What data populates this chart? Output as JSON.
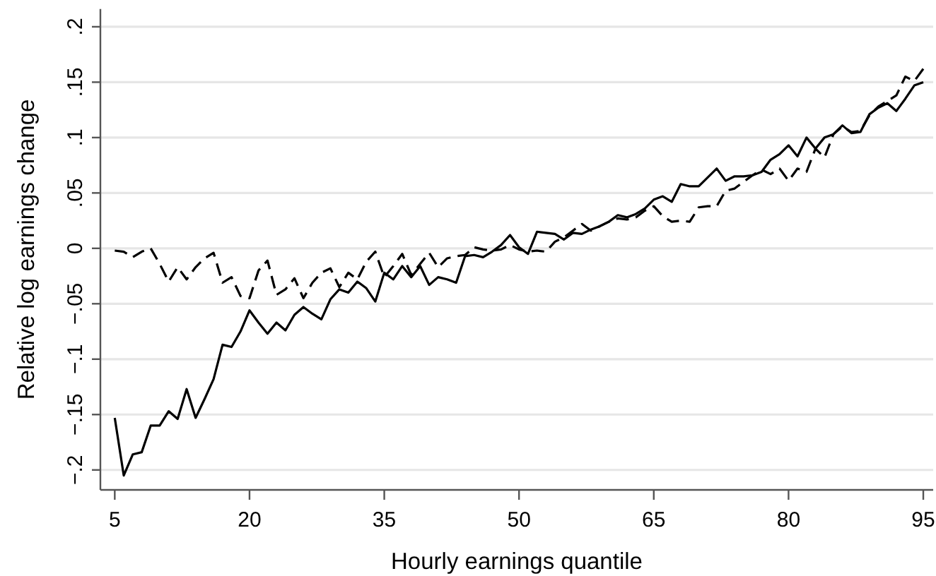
{
  "chart_data": {
    "type": "line",
    "xlabel": "Hourly earnings quantile",
    "ylabel": "Relative log earnings change",
    "x": [
      5,
      6,
      7,
      8,
      9,
      10,
      11,
      12,
      13,
      14,
      15,
      16,
      17,
      18,
      19,
      20,
      21,
      22,
      23,
      24,
      25,
      26,
      27,
      28,
      29,
      30,
      31,
      32,
      33,
      34,
      35,
      36,
      37,
      38,
      39,
      40,
      41,
      42,
      43,
      44,
      45,
      46,
      47,
      48,
      49,
      50,
      51,
      52,
      53,
      54,
      55,
      56,
      57,
      58,
      59,
      60,
      61,
      62,
      63,
      64,
      65,
      66,
      67,
      68,
      69,
      70,
      71,
      72,
      73,
      74,
      75,
      76,
      77,
      78,
      79,
      80,
      81,
      82,
      83,
      84,
      85,
      86,
      87,
      88,
      89,
      90,
      91,
      92,
      93,
      94,
      95
    ],
    "series": [
      {
        "color": "#000000",
        "line_style": "solid",
        "values": [
          -0.153,
          -0.205,
          -0.186,
          -0.184,
          -0.16,
          -0.16,
          -0.147,
          -0.154,
          -0.127,
          -0.153,
          -0.136,
          -0.118,
          -0.087,
          -0.089,
          -0.075,
          -0.056,
          -0.067,
          -0.077,
          -0.067,
          -0.074,
          -0.06,
          -0.053,
          -0.059,
          -0.064,
          -0.046,
          -0.037,
          -0.04,
          -0.03,
          -0.036,
          -0.048,
          -0.022,
          -0.028,
          -0.016,
          -0.026,
          -0.016,
          -0.033,
          -0.026,
          -0.028,
          -0.031,
          -0.007,
          -0.006,
          -0.008,
          -0.003,
          0.003,
          0.012,
          0.001,
          -0.005,
          0.015,
          0.014,
          0.013,
          0.008,
          0.014,
          0.013,
          0.017,
          0.02,
          0.024,
          0.03,
          0.028,
          0.031,
          0.036,
          0.044,
          0.047,
          0.042,
          0.058,
          0.056,
          0.056,
          0.064,
          0.072,
          0.061,
          0.065,
          0.065,
          0.066,
          0.069,
          0.08,
          0.085,
          0.093,
          0.083,
          0.1,
          0.09,
          0.1,
          0.103,
          0.111,
          0.104,
          0.105,
          0.121,
          0.127,
          0.131,
          0.124,
          0.135,
          0.147,
          0.15
        ]
      },
      {
        "color": "#000000",
        "line_style": "dashed",
        "values": [
          -0.002,
          -0.003,
          -0.008,
          -0.003,
          0.0,
          -0.014,
          -0.03,
          -0.017,
          -0.028,
          -0.017,
          -0.009,
          -0.004,
          -0.031,
          -0.026,
          -0.043,
          -0.045,
          -0.02,
          -0.011,
          -0.042,
          -0.037,
          -0.027,
          -0.045,
          -0.031,
          -0.022,
          -0.018,
          -0.035,
          -0.022,
          -0.028,
          -0.012,
          -0.003,
          -0.026,
          -0.016,
          -0.005,
          -0.024,
          -0.014,
          -0.004,
          -0.017,
          -0.009,
          -0.007,
          -0.006,
          0.001,
          -0.001,
          -0.002,
          -0.001,
          0.003,
          -0.001,
          -0.003,
          -0.002,
          -0.003,
          0.006,
          0.01,
          0.016,
          0.022,
          0.016,
          0.02,
          0.024,
          0.027,
          0.026,
          0.028,
          0.034,
          0.038,
          0.029,
          0.024,
          0.025,
          0.024,
          0.037,
          0.038,
          0.038,
          0.052,
          0.054,
          0.06,
          0.066,
          0.071,
          0.067,
          0.072,
          0.061,
          0.072,
          0.069,
          0.09,
          0.082,
          0.103,
          0.11,
          0.105,
          0.106,
          0.12,
          0.128,
          0.133,
          0.138,
          0.155,
          0.151,
          0.162
        ]
      }
    ],
    "xlim": [
      3.4,
      96.1
    ],
    "ylim": [
      -0.218,
      0.216
    ],
    "xticks": [
      5,
      20,
      35,
      50,
      65,
      80,
      95
    ],
    "yticks": [
      {
        "value": -0.2,
        "label": "−.2"
      },
      {
        "value": -0.15,
        "label": "−.15"
      },
      {
        "value": -0.1,
        "label": "−.1"
      },
      {
        "value": -0.05,
        "label": "−.05"
      },
      0,
      {
        "value": 0.05,
        "label": ".05"
      },
      {
        "value": 0.1,
        "label": ".1"
      },
      {
        "value": 0.15,
        "label": ".15"
      },
      {
        "value": 0.2,
        "label": ".2"
      }
    ],
    "grid": "y"
  }
}
